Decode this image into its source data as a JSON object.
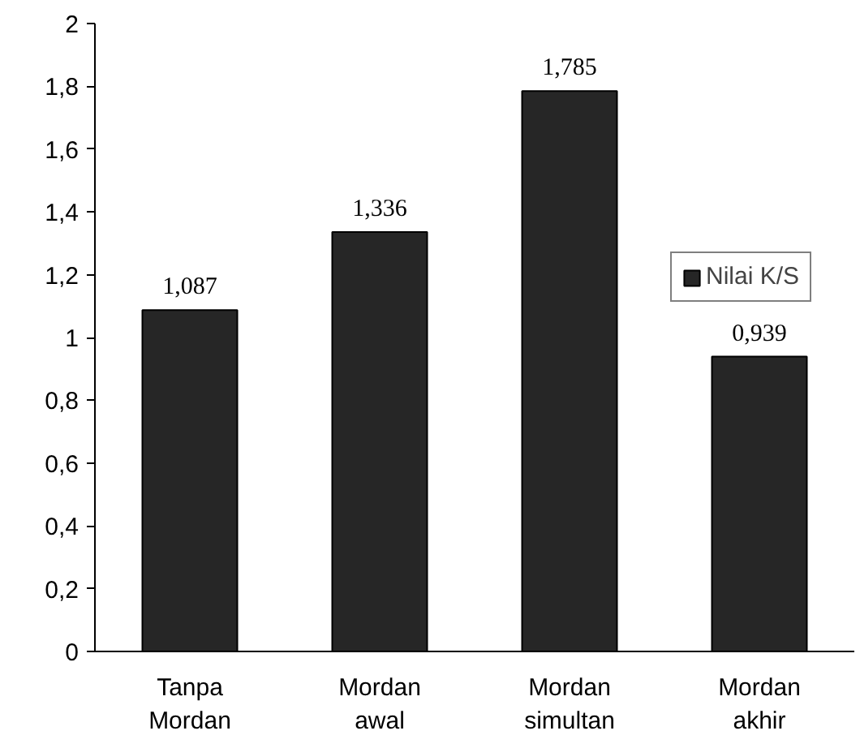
{
  "chart_data": {
    "type": "bar",
    "categories": [
      "Tanpa Mordan",
      "Mordan awal",
      "Mordan simultan",
      "Mordan akhir"
    ],
    "series": [
      {
        "name": "Nilai K/S",
        "color": "#262626",
        "values": [
          1.087,
          1.336,
          1.785,
          0.939
        ]
      }
    ],
    "value_labels": [
      "1,087",
      "1,336",
      "1,785",
      "0,939"
    ],
    "ylim": [
      0,
      2
    ],
    "yticks": [
      0,
      {
        "value": 0.2,
        "label": "0,2"
      },
      {
        "value": 0.4,
        "label": "0,4"
      },
      {
        "value": 0.6,
        "label": "0,6"
      },
      {
        "value": 0.8,
        "label": "0,8"
      },
      1,
      {
        "value": 1.2,
        "label": "1,2"
      },
      {
        "value": 1.4,
        "label": "1,4"
      },
      {
        "value": 1.6,
        "label": "1,6"
      },
      {
        "value": 1.8,
        "label": "1,8"
      },
      2
    ],
    "grid": false,
    "legend": "right"
  }
}
